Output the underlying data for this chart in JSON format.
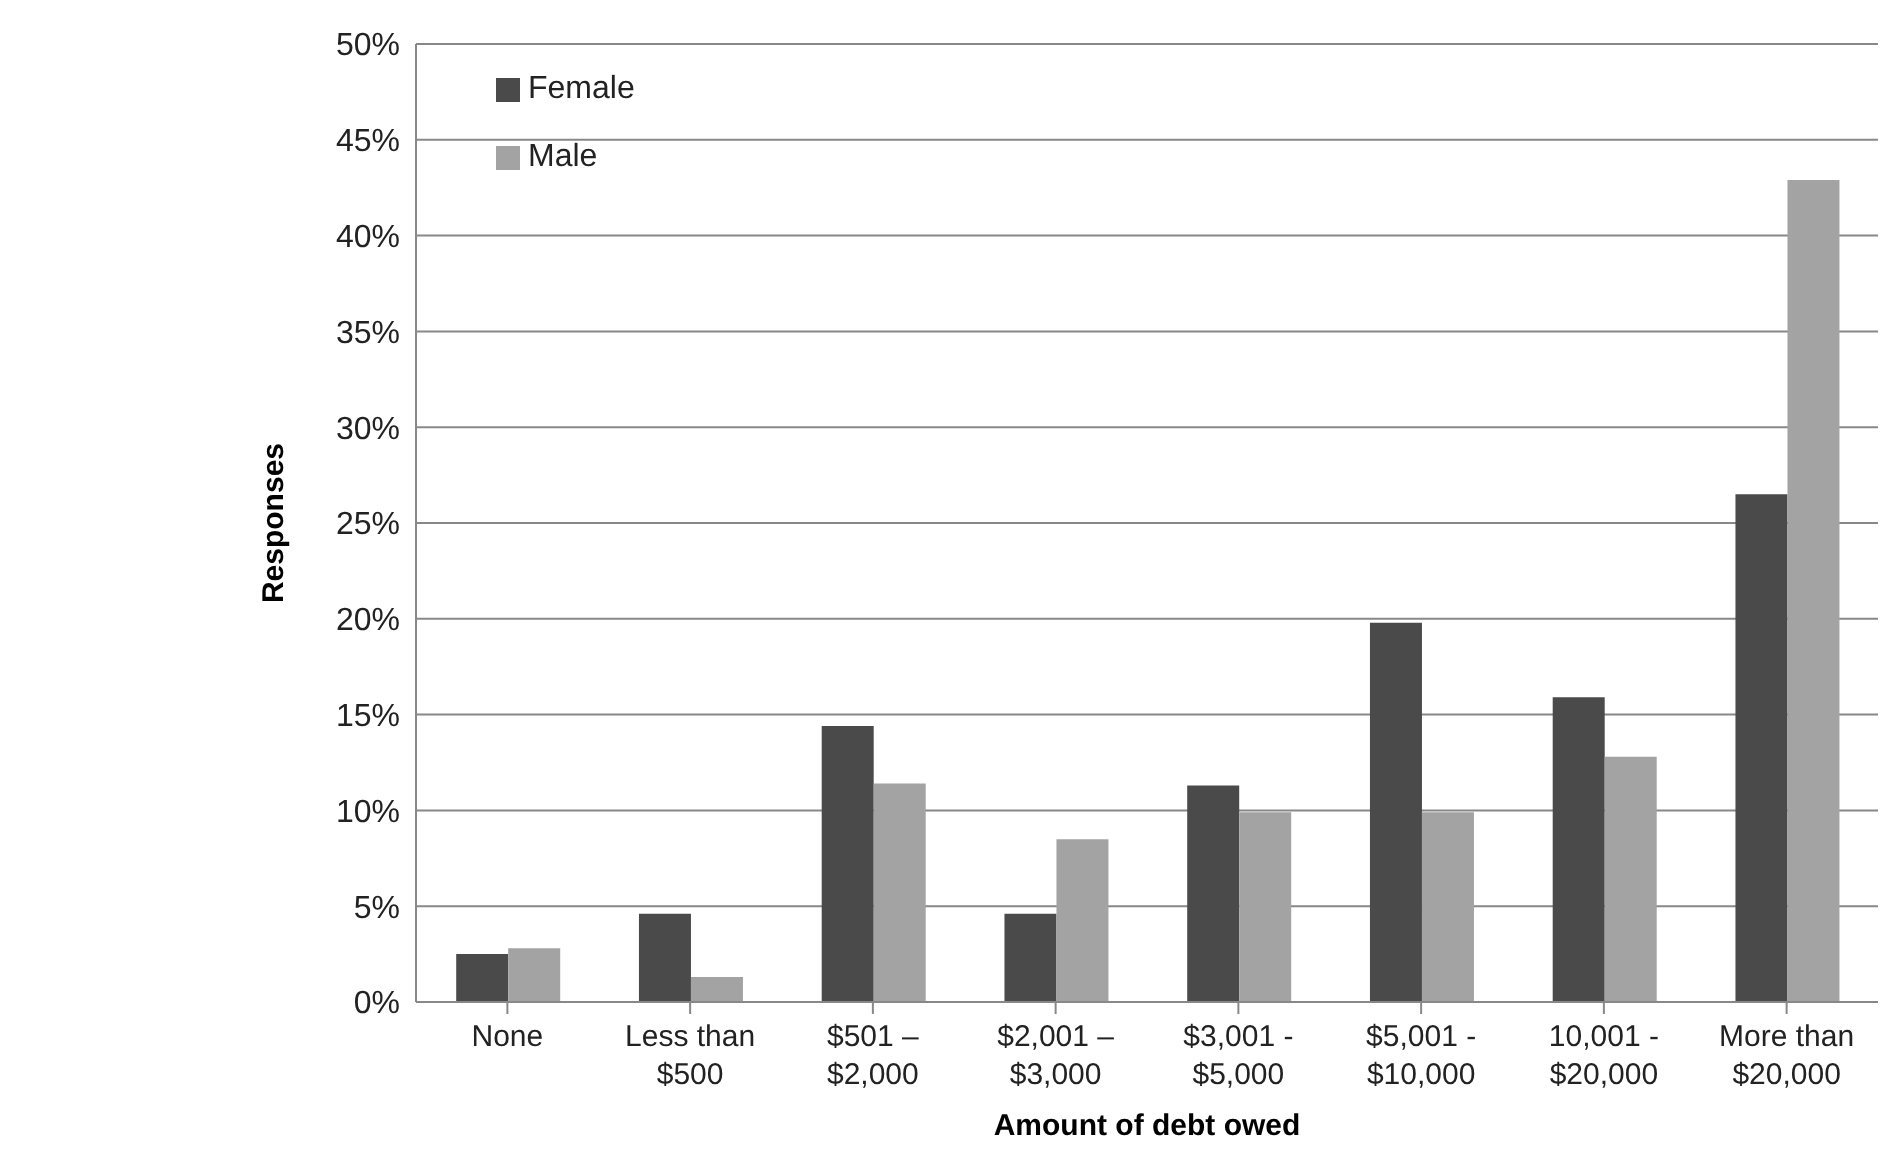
{
  "chart_data": {
    "type": "bar",
    "xlabel": "Amount of debt owed",
    "ylabel": "Responses",
    "categories": [
      "None",
      "Less than\n$500",
      "$501 –\n$2,000",
      "$2,001 –\n$3,000",
      "$3,001 -\n$5,000",
      "$5,001 -\n$10,000",
      "10,001 -\n$20,000",
      "More than\n$20,000"
    ],
    "series": [
      {
        "name": "Female",
        "color": "#4a4a4a",
        "values": [
          2.5,
          4.6,
          14.4,
          4.6,
          11.3,
          19.8,
          15.9,
          26.5
        ]
      },
      {
        "name": "Male",
        "color": "#a3a3a3",
        "values": [
          2.8,
          1.3,
          11.4,
          8.5,
          9.9,
          9.9,
          12.8,
          42.9
        ]
      }
    ],
    "ylim": [
      0,
      50
    ],
    "yticks": [
      {
        "value": 0,
        "label": "0%"
      },
      {
        "value": 5,
        "label": "5%"
      },
      {
        "value": 10,
        "label": "10%"
      },
      {
        "value": 15,
        "label": "15%"
      },
      {
        "value": 20,
        "label": "20%"
      },
      {
        "value": 25,
        "label": "25%"
      },
      {
        "value": 30,
        "label": "30%"
      },
      {
        "value": 35,
        "label": "35%"
      },
      {
        "value": 40,
        "label": "40%"
      },
      {
        "value": 45,
        "label": "45%"
      },
      {
        "value": 50,
        "label": "50%"
      }
    ],
    "grid": "y",
    "legend": "top left"
  }
}
